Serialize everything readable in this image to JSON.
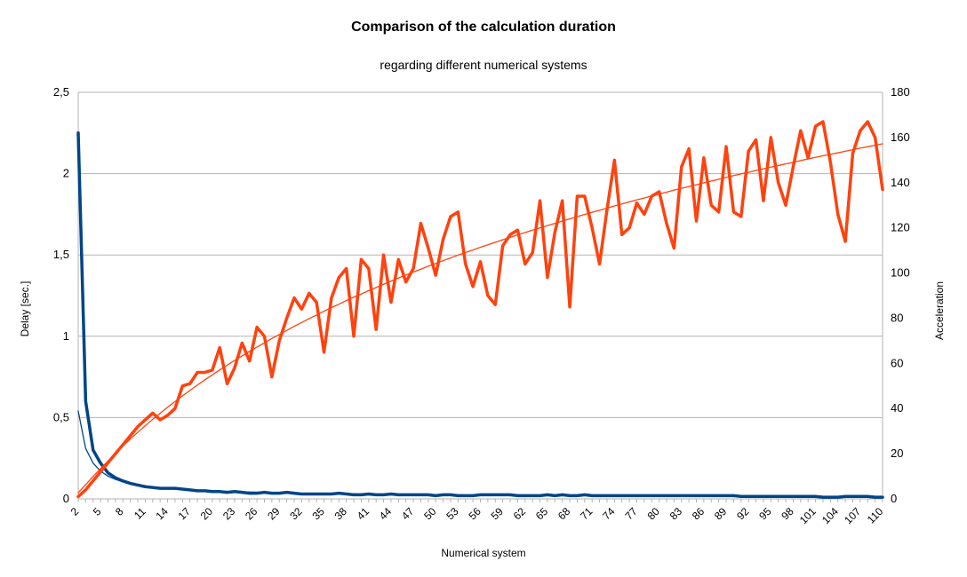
{
  "chart_data": {
    "type": "line",
    "title": "Comparison of the calculation duration",
    "subtitle": "regarding different numerical systems",
    "xlabel": "Numerical system",
    "ylabel_left": "Delay [sec.]",
    "ylabel_right": "Acceleration",
    "x_range": [
      2,
      110
    ],
    "x_tick_labels": [
      "2",
      "5",
      "8",
      "11",
      "14",
      "17",
      "20",
      "23",
      "26",
      "29",
      "32",
      "35",
      "38",
      "41",
      "44",
      "47",
      "50",
      "53",
      "56",
      "59",
      "62",
      "65",
      "68",
      "71",
      "74",
      "77",
      "80",
      "83",
      "86",
      "89",
      "92",
      "95",
      "98",
      "101",
      "104",
      "107",
      "110"
    ],
    "y_left": {
      "ylim": [
        0,
        2.5
      ],
      "tick_labels": [
        "0",
        "0,5",
        "1",
        "1,5",
        "2",
        "2,5"
      ]
    },
    "y_right": {
      "ylim": [
        0,
        180
      ],
      "tick_labels": [
        "0",
        "20",
        "40",
        "60",
        "80",
        "100",
        "120",
        "140",
        "160",
        "180"
      ]
    },
    "grid": "horizontal",
    "legend": "none",
    "series": [
      {
        "axis": "left",
        "color": "#004586",
        "style": "thick",
        "x_start": 2,
        "values": [
          2.25,
          0.6,
          0.3,
          0.22,
          0.16,
          0.13,
          0.11,
          0.095,
          0.085,
          0.075,
          0.07,
          0.065,
          0.065,
          0.065,
          0.06,
          0.055,
          0.05,
          0.05,
          0.045,
          0.045,
          0.04,
          0.045,
          0.04,
          0.035,
          0.035,
          0.04,
          0.035,
          0.035,
          0.04,
          0.035,
          0.03,
          0.03,
          0.03,
          0.03,
          0.03,
          0.035,
          0.03,
          0.025,
          0.025,
          0.03,
          0.025,
          0.025,
          0.03,
          0.025,
          0.025,
          0.025,
          0.025,
          0.025,
          0.02,
          0.025,
          0.025,
          0.02,
          0.02,
          0.02,
          0.025,
          0.025,
          0.025,
          0.025,
          0.025,
          0.02,
          0.02,
          0.02,
          0.02,
          0.025,
          0.02,
          0.025,
          0.02,
          0.02,
          0.025,
          0.02,
          0.02,
          0.02,
          0.02,
          0.02,
          0.02,
          0.02,
          0.02,
          0.02,
          0.02,
          0.02,
          0.02,
          0.02,
          0.02,
          0.02,
          0.02,
          0.02,
          0.02,
          0.02,
          0.02,
          0.015,
          0.015,
          0.015,
          0.015,
          0.015,
          0.015,
          0.015,
          0.015,
          0.015,
          0.015,
          0.015,
          0.01,
          0.01,
          0.01,
          0.015,
          0.015,
          0.015,
          0.015,
          0.01,
          0.01
        ]
      },
      {
        "axis": "left",
        "color": "#004586",
        "style": "thin-trend",
        "x_start": 2,
        "values": [
          0.54,
          0.31,
          0.22,
          0.17,
          0.14,
          0.12,
          0.105,
          0.095,
          0.087,
          0.08,
          0.075,
          0.07,
          0.066,
          0.062,
          0.059,
          0.056,
          0.054,
          0.052,
          0.05,
          0.048,
          0.046,
          0.045,
          0.043,
          0.042,
          0.041,
          0.04,
          0.039,
          0.038,
          0.037,
          0.036,
          0.035,
          0.035,
          0.034,
          0.033,
          0.033,
          0.032,
          0.031,
          0.031,
          0.03,
          0.03,
          0.029,
          0.029,
          0.028,
          0.028,
          0.027,
          0.027,
          0.027,
          0.026,
          0.026,
          0.025,
          0.025,
          0.025,
          0.024,
          0.024,
          0.024,
          0.023,
          0.023,
          0.023,
          0.023,
          0.022,
          0.022,
          0.022,
          0.022,
          0.021,
          0.021,
          0.021,
          0.021,
          0.02,
          0.02,
          0.02,
          0.02,
          0.02,
          0.019,
          0.019,
          0.019,
          0.019,
          0.019,
          0.019,
          0.018,
          0.018,
          0.018,
          0.018,
          0.018,
          0.018,
          0.017,
          0.017,
          0.017,
          0.017,
          0.017,
          0.017,
          0.017,
          0.016,
          0.016,
          0.016,
          0.016,
          0.016,
          0.016,
          0.016,
          0.016,
          0.015,
          0.015,
          0.015,
          0.015,
          0.015,
          0.015,
          0.015,
          0.015,
          0.015,
          0.014
        ]
      },
      {
        "axis": "right",
        "color": "#ff420e",
        "style": "thick",
        "x_start": 2,
        "values": [
          1,
          4,
          8,
          12,
          16,
          20,
          24,
          28,
          32,
          35,
          38,
          35,
          37,
          40,
          50,
          51,
          56,
          56,
          57,
          67,
          51,
          58,
          69,
          61,
          76,
          72,
          54,
          70,
          80,
          89,
          84,
          91,
          87,
          65,
          89,
          98,
          102,
          72,
          106,
          102,
          75,
          108,
          87,
          106,
          96,
          102,
          122,
          111,
          99,
          115,
          125,
          127,
          104,
          94,
          105,
          90,
          86,
          112,
          117,
          119,
          104,
          109,
          132,
          98,
          118,
          132,
          85,
          134,
          134,
          120,
          104,
          128,
          150,
          117,
          120,
          131,
          126,
          134,
          136,
          122,
          111,
          147,
          155,
          123,
          151,
          130,
          127,
          156,
          127,
          125,
          154,
          159,
          132,
          160,
          140,
          130,
          147,
          163,
          151,
          165,
          167,
          149,
          126,
          114,
          153,
          163,
          167,
          160,
          137
        ]
      },
      {
        "axis": "right",
        "color": "#ff420e",
        "style": "thin-trend",
        "x_start": 2,
        "values": [
          2.7,
          6.3,
          9.9,
          13.4,
          16.8,
          20.1,
          23.4,
          26.5,
          29.5,
          32.4,
          35.2,
          37.9,
          40.6,
          43.1,
          45.6,
          48,
          50.4,
          52.7,
          54.9,
          57.1,
          59.2,
          61.3,
          63.3,
          65.3,
          67.2,
          69.1,
          71,
          72.8,
          74.6,
          76.4,
          78.1,
          79.8,
          81.4,
          83.1,
          84.7,
          86.2,
          87.8,
          89.3,
          90.7,
          92.2,
          93.6,
          95,
          96.4,
          97.8,
          99.1,
          100.4,
          101.7,
          103,
          104.2,
          105.5,
          106.7,
          107.9,
          109.1,
          110.2,
          111.4,
          112.5,
          113.6,
          114.7,
          115.8,
          116.9,
          117.9,
          119,
          120,
          121,
          122,
          123,
          124,
          125,
          125.9,
          126.9,
          127.8,
          128.7,
          129.7,
          130.6,
          131.5,
          132.4,
          133.2,
          134.1,
          135,
          135.8,
          136.7,
          137.5,
          138.3,
          139.1,
          139.9,
          140.7,
          141.5,
          142.3,
          143.1,
          143.9,
          144.6,
          145.4,
          146.1,
          146.9,
          147.6,
          148.3,
          149,
          149.8,
          150.5,
          151.2,
          151.9,
          152.6,
          153.2,
          153.9,
          154.6,
          155.3,
          155.9,
          156.6,
          157.2
        ]
      }
    ]
  }
}
